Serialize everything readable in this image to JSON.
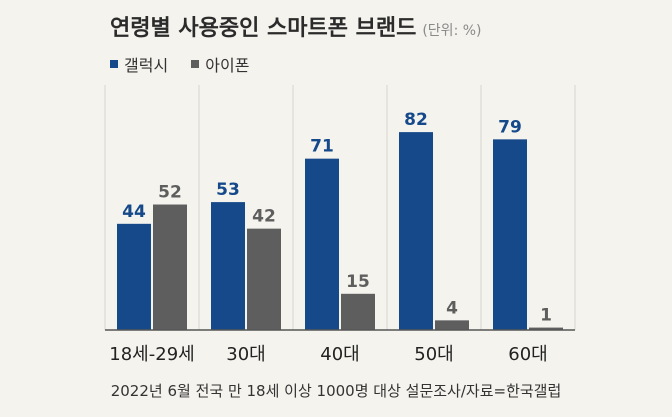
{
  "title": "연령별 사용중인 스마트폰 브랜드",
  "unit": "(단위: %)",
  "footnote": "2022년 6월 전국 만 18세 이상 1000명 대상 설문조사/자료=한국갤럽",
  "colors": {
    "galaxy": "#15498a",
    "iphone": "#5e5e5e",
    "grid": "#d6d4cf",
    "background": "#f5f3ee"
  },
  "chart_data": {
    "type": "bar",
    "categories": [
      "18세-29세",
      "30대",
      "40대",
      "50대",
      "60대"
    ],
    "series": [
      {
        "name": "갤럭시",
        "values": [
          44,
          53,
          71,
          82,
          79
        ]
      },
      {
        "name": "아이폰",
        "values": [
          52,
          42,
          15,
          4,
          1
        ]
      }
    ],
    "ylim": [
      0,
      100
    ],
    "grid": true,
    "legend_position": "top-left",
    "data_labels": true
  }
}
